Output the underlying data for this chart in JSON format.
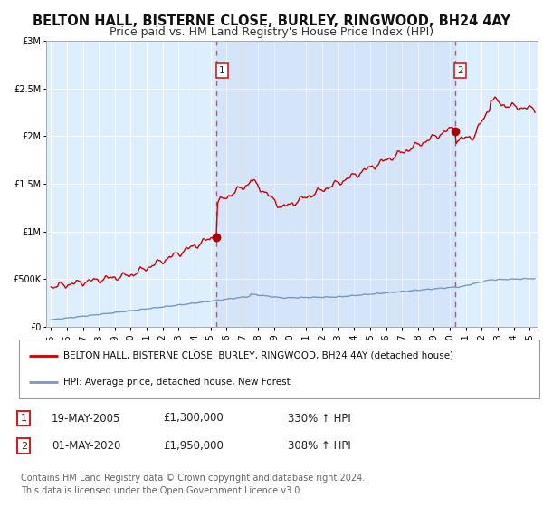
{
  "title": "BELTON HALL, BISTERNE CLOSE, BURLEY, RINGWOOD, BH24 4AY",
  "subtitle": "Price paid vs. HM Land Registry's House Price Index (HPI)",
  "title_fontsize": 10.5,
  "subtitle_fontsize": 9,
  "background_color": "#ffffff",
  "plot_bg_color": "#ddeeff",
  "grid_color": "#ffffff",
  "ylim": [
    0,
    3000000
  ],
  "yticks": [
    0,
    500000,
    1000000,
    1500000,
    2000000,
    2500000,
    3000000
  ],
  "ytick_labels": [
    "£0",
    "£500K",
    "£1M",
    "£1.5M",
    "£2M",
    "£2.5M",
    "£3M"
  ],
  "xlim_start": 1994.7,
  "xlim_end": 2025.5,
  "xtick_years": [
    1995,
    1996,
    1997,
    1998,
    1999,
    2000,
    2001,
    2002,
    2003,
    2004,
    2005,
    2006,
    2007,
    2008,
    2009,
    2010,
    2011,
    2012,
    2013,
    2014,
    2015,
    2016,
    2017,
    2018,
    2019,
    2020,
    2021,
    2022,
    2023,
    2024,
    2025
  ],
  "vline1_x": 2005.38,
  "vline2_x": 2020.33,
  "sale1_date": "19-MAY-2005",
  "sale1_price": "£1,300,000",
  "sale1_hpi": "330% ↑ HPI",
  "sale2_date": "01-MAY-2020",
  "sale2_price": "£1,950,000",
  "sale2_hpi": "308% ↑ HPI",
  "red_line_color": "#cc0000",
  "blue_line_color": "#7799bb",
  "dot_color": "#aa0000",
  "legend_label1": "BELTON HALL, BISTERNE CLOSE, BURLEY, RINGWOOD, BH24 4AY (detached house)",
  "legend_label2": "HPI: Average price, detached house, New Forest",
  "footer1": "Contains HM Land Registry data © Crown copyright and database right 2024.",
  "footer2": "This data is licensed under the Open Government Licence v3.0.",
  "label1_num": "1",
  "label2_num": "2"
}
